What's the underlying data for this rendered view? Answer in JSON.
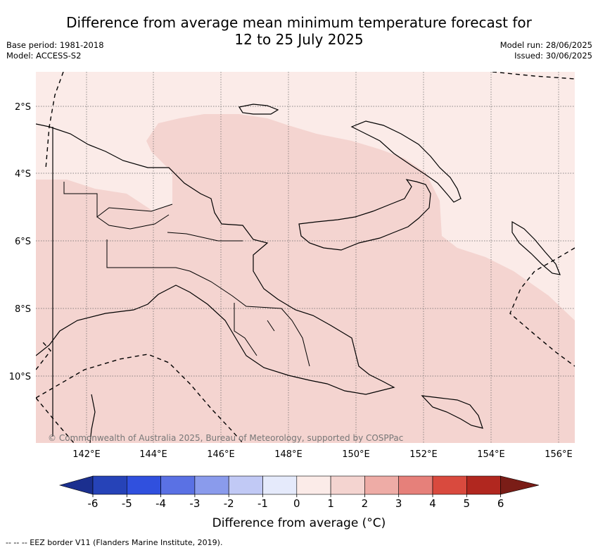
{
  "title_line1": "Difference from average mean minimum temperature forecast for",
  "title_line2": "12 to 25 July 2025",
  "base_period": "Base period: 1981-2018",
  "model": "Model: ACCESS-S2",
  "model_run": "Model run: 28/06/2025",
  "issued": "Issued: 30/06/2025",
  "lat_labels": [
    "2°S",
    "4°S",
    "6°S",
    "8°S",
    "10°S"
  ],
  "lon_labels": [
    "142°E",
    "144°E",
    "146°E",
    "148°E",
    "150°E",
    "152°E",
    "154°E",
    "156°E"
  ],
  "copyright": "© Commonwealth of Australia 2025, Bureau of Meteorology, supported by COSPPac",
  "colorbar": {
    "title": "Difference from average (°C)",
    "ticks": [
      "-6",
      "-5",
      "-4",
      "-3",
      "-2",
      "-1",
      "0",
      "1",
      "2",
      "3",
      "4",
      "5",
      "6"
    ],
    "colors": [
      "#1b2f8f",
      "#2643b8",
      "#3050de",
      "#5a71e4",
      "#8a9bec",
      "#c1c9f5",
      "#e5eafb",
      "#fbebe8",
      "#f4d4d0",
      "#eeaca6",
      "#e6807a",
      "#d94a3e",
      "#b1271f",
      "#7a1d17"
    ]
  },
  "legend_note": "-- -- -- EEZ border V11 (Flanders Marine Institute, 2019).",
  "map_data": {
    "region": "Papua New Guinea",
    "lon_range": [
      140.5,
      156.5
    ],
    "lat_range": [
      -12,
      -1
    ],
    "anomaly_categories_shown": [
      "0 to 1",
      "1 to 2"
    ]
  }
}
